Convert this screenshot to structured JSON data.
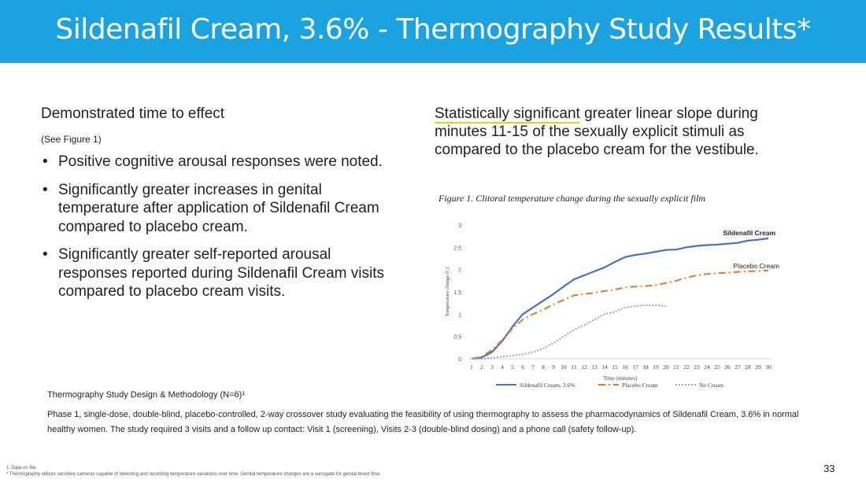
{
  "slide": {
    "title": "Sildenafil Cream, 3.6% - Thermography Study Results*",
    "page_number": "33"
  },
  "left": {
    "heading": "Demonstrated time to effect",
    "subheading": "(See Figure 1)",
    "bullets": [
      "Positive cognitive arousal responses were noted.",
      "Significantly greater increases in genital temperature after application of Sildenafil Cream compared to placebo cream.",
      "Significantly greater self-reported arousal responses reported during Sildenafil Cream visits compared to placebo cream visits."
    ]
  },
  "right": {
    "highlight": "Statistically significant",
    "text": " greater linear slope during minutes 11-15 of the sexually explicit stimuli as compared to the placebo cream for the vestibule."
  },
  "figure_caption": "Figure 1. Clitoral temperature change during the sexually explicit film",
  "design": {
    "title": "Thermography Study Design & Methodology (N=6)¹",
    "body": "Phase 1, single-dose, double-blind, placebo-controlled, 2-way crossover study evaluating the feasibility of using thermography to assess the pharmacodynamics of Sildenafil Cream, 3.6% in normal healthy women. The study required 3 visits and a follow up contact: Visit 1 (screening), Visits 2-3 (double-blind dosing) and a phone call (safety follow-up)."
  },
  "footnotes": [
    "1. Data on file.",
    "* Thermography utilizes sensitive cameras capable of detecting and recording temperature variations over time. Genital temperature changes are a surrogate for genital blood flow."
  ],
  "chart_data": {
    "type": "line",
    "title": "Figure 1. Clitoral temperature change during the sexually explicit film",
    "xlabel": "Time (minutes)",
    "ylabel": "Temperature change (C)",
    "x": [
      1,
      2,
      3,
      4,
      5,
      6,
      7,
      8,
      9,
      10,
      11,
      12,
      13,
      14,
      15,
      16,
      17,
      18,
      19,
      20,
      21,
      22,
      23,
      24,
      25,
      26,
      27,
      28,
      29,
      30
    ],
    "ylim": [
      0,
      3
    ],
    "yticks": [
      0,
      0.5,
      1,
      1.5,
      2,
      2.5,
      3
    ],
    "ytick_labels": [
      "0",
      "0.5",
      "1",
      "1.5",
      "2",
      "2.5",
      "3"
    ],
    "series": [
      {
        "name": "Sildenafil Cream, 3.6%",
        "color": "#4472c4",
        "dash": "",
        "values": [
          0,
          0.03,
          0.15,
          0.4,
          0.72,
          1.0,
          1.15,
          1.3,
          1.45,
          1.62,
          1.78,
          1.87,
          1.96,
          2.05,
          2.17,
          2.28,
          2.33,
          2.36,
          2.4,
          2.44,
          2.45,
          2.5,
          2.53,
          2.55,
          2.56,
          2.58,
          2.6,
          2.65,
          2.67,
          2.7
        ]
      },
      {
        "name": "Placebo Cream",
        "color": "#e07b28",
        "dash": "9,4,2,4",
        "values": [
          0,
          0.05,
          0.2,
          0.42,
          0.68,
          0.88,
          1.0,
          1.1,
          1.22,
          1.32,
          1.42,
          1.45,
          1.48,
          1.52,
          1.55,
          1.6,
          1.62,
          1.63,
          1.65,
          1.7,
          1.75,
          1.82,
          1.87,
          1.9,
          1.92,
          1.93,
          1.95,
          1.96,
          1.97,
          1.98
        ]
      },
      {
        "name": "No Cream",
        "color": "#a5a5a5",
        "dash": "2,2",
        "values": [
          0,
          0,
          0.02,
          0.05,
          0.07,
          0.1,
          0.15,
          0.23,
          0.35,
          0.5,
          0.65,
          0.75,
          0.88,
          1.0,
          1.05,
          1.15,
          1.18,
          1.2,
          1.2,
          1.18,
          null,
          null,
          null,
          null,
          null,
          null,
          null,
          null,
          null,
          null
        ]
      }
    ],
    "annotations": [
      "Sildenafil Cream",
      "Placebo Cream"
    ],
    "legend_position": "bottom"
  }
}
